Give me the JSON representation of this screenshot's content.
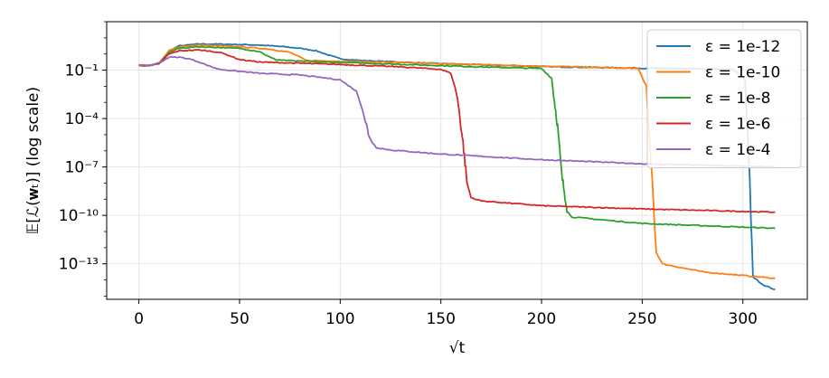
{
  "chart_data": {
    "type": "line",
    "title": "",
    "xlabel": "√t",
    "ylabel": "𝔼[ℒ(𝐰ₜ)] (log scale)",
    "yscale": "log",
    "xlim": [
      -16,
      332
    ],
    "ylim_log10": [
      -15.2,
      2.0
    ],
    "xticks": [
      0,
      50,
      100,
      150,
      200,
      250,
      300
    ],
    "xtick_labels": [
      "0",
      "50",
      "100",
      "150",
      "200",
      "250",
      "300"
    ],
    "yticks_log10": [
      -1,
      -4,
      -7,
      -10,
      -13
    ],
    "ytick_labels": [
      "10⁻¹",
      "10⁻⁴",
      "10⁻⁷",
      "10⁻¹⁰",
      "10⁻¹³"
    ],
    "grid": true,
    "legend_position": "top-right",
    "series": [
      {
        "name": "ε = 1e-12",
        "color": "#1f77b4",
        "x": [
          0,
          5,
          10,
          15,
          20,
          30,
          45,
          60,
          72,
          80,
          88,
          95,
          100,
          110,
          150,
          200,
          250,
          280,
          295,
          301,
          303,
          305,
          310,
          316
        ],
        "y_log10": [
          -0.7,
          -0.72,
          -0.6,
          0.2,
          0.5,
          0.62,
          0.6,
          0.55,
          0.45,
          0.35,
          0.2,
          -0.1,
          -0.3,
          -0.4,
          -0.6,
          -0.78,
          -0.88,
          -0.93,
          -0.96,
          -1.5,
          -6.5,
          -13.8,
          -14.3,
          -14.6
        ]
      },
      {
        "name": "ε = 1e-10",
        "color": "#ff7f0e",
        "x": [
          0,
          5,
          10,
          15,
          20,
          30,
          50,
          65,
          75,
          80,
          83,
          90,
          120,
          150,
          200,
          235,
          248,
          252,
          255,
          257,
          260,
          280,
          316
        ],
        "y_log10": [
          -0.7,
          -0.72,
          -0.6,
          0.2,
          0.45,
          0.55,
          0.45,
          0.3,
          0.1,
          -0.2,
          -0.4,
          -0.42,
          -0.5,
          -0.6,
          -0.75,
          -0.85,
          -0.9,
          -2.0,
          -8.0,
          -12.3,
          -13.0,
          -13.5,
          -13.9
        ]
      },
      {
        "name": "ε = 1e-8",
        "color": "#2ca02c",
        "x": [
          0,
          5,
          10,
          15,
          20,
          30,
          50,
          60,
          65,
          68,
          80,
          120,
          170,
          200,
          205,
          208,
          210,
          213,
          215,
          250,
          316
        ],
        "y_log10": [
          -0.7,
          -0.72,
          -0.6,
          0.1,
          0.35,
          0.45,
          0.35,
          0.15,
          -0.2,
          -0.35,
          -0.45,
          -0.6,
          -0.8,
          -0.9,
          -1.5,
          -4.5,
          -7.5,
          -9.8,
          -10.1,
          -10.5,
          -10.8
        ]
      },
      {
        "name": "ε = 1e-6",
        "color": "#d62728",
        "x": [
          0,
          5,
          10,
          15,
          20,
          30,
          40,
          45,
          50,
          60,
          100,
          130,
          150,
          155,
          158,
          161,
          163,
          165,
          170,
          200,
          250,
          316
        ],
        "y_log10": [
          -0.7,
          -0.72,
          -0.6,
          0.0,
          0.2,
          0.25,
          0.1,
          -0.1,
          -0.35,
          -0.5,
          -0.65,
          -0.8,
          -0.95,
          -1.2,
          -2.5,
          -5.5,
          -8.0,
          -8.9,
          -9.1,
          -9.4,
          -9.6,
          -9.8
        ]
      },
      {
        "name": "ε = 1e-4",
        "color": "#9467bd",
        "x": [
          0,
          5,
          10,
          15,
          20,
          25,
          30,
          35,
          40,
          60,
          80,
          100,
          108,
          112,
          114,
          116,
          118,
          125,
          150,
          200,
          250,
          316
        ],
        "y_log10": [
          -0.7,
          -0.72,
          -0.55,
          -0.2,
          -0.2,
          -0.3,
          -0.5,
          -0.75,
          -0.95,
          -1.2,
          -1.3,
          -1.6,
          -2.3,
          -3.8,
          -5.0,
          -5.5,
          -5.8,
          -5.95,
          -6.2,
          -6.55,
          -6.8,
          -7.0
        ]
      }
    ]
  }
}
